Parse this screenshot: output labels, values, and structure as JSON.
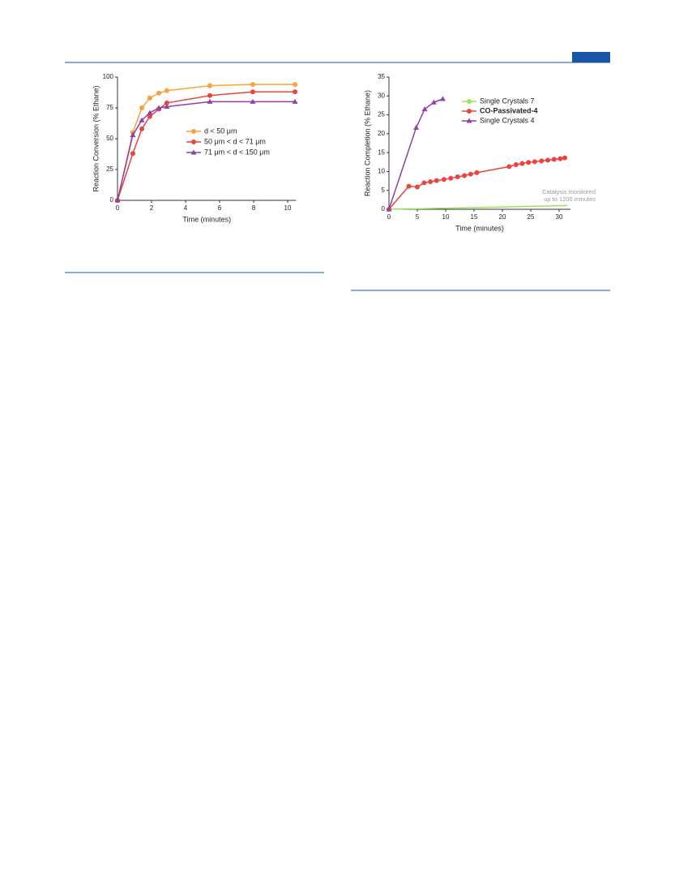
{
  "chart_data": [
    {
      "type": "line",
      "xlabel": "Time (minutes)",
      "ylabel": "Reaction Conversion (% Ethane)",
      "xlim": [
        0,
        10.5
      ],
      "xticks": [
        0,
        2,
        4,
        6,
        8,
        10
      ],
      "ylim": [
        0,
        100
      ],
      "yticks": [
        0,
        25,
        50,
        75,
        100
      ],
      "series": [
        {
          "name": "d < 50 μm",
          "color": "#f7a23b",
          "marker": "circle",
          "x": [
            0,
            0.9,
            1.43,
            1.9,
            2.43,
            2.9,
            5.43,
            7.95,
            10.43
          ],
          "values": [
            0,
            55,
            75,
            83,
            87,
            89,
            93,
            94,
            94
          ]
        },
        {
          "name": "50 μm < d < 71 μm",
          "color": "#e8453c",
          "marker": "circle",
          "x": [
            0,
            0.9,
            1.43,
            1.9,
            2.43,
            2.9,
            5.43,
            7.95,
            10.43
          ],
          "values": [
            0,
            38,
            58,
            68,
            74,
            79,
            85,
            88,
            88
          ]
        },
        {
          "name": "71 μm < d < 150 μm",
          "color": "#8e3fa8",
          "marker": "triangle",
          "x": [
            0,
            0.9,
            1.43,
            1.9,
            2.43,
            2.9,
            5.43,
            7.95,
            10.43
          ],
          "values": [
            0,
            53,
            65,
            71,
            75,
            76,
            80,
            80,
            80
          ]
        }
      ]
    },
    {
      "type": "line",
      "xlabel": "Time (minutes)",
      "ylabel": "Reaction Completion (% Ethane)",
      "xlim": [
        0,
        32
      ],
      "xticks": [
        0,
        5,
        10,
        15,
        20,
        25,
        30
      ],
      "ylim": [
        0,
        35
      ],
      "yticks": [
        0,
        5,
        10,
        15,
        20,
        25,
        30,
        35
      ],
      "annotation": [
        "Catalysis monitored",
        "up to 1200 minutes"
      ],
      "series": [
        {
          "name": "Single Crystals 7",
          "color": "#9be35a",
          "marker": "none",
          "x": [
            0,
            10,
            20,
            31.5
          ],
          "values": [
            0,
            0.3,
            0.6,
            1
          ]
        },
        {
          "name": "CO-Passivated-4",
          "color": "#e8453c",
          "marker": "circle",
          "x": [
            0,
            3.5,
            5,
            6.2,
            7.3,
            8.4,
            9.7,
            10.9,
            12.1,
            13.3,
            14.4,
            15.5,
            21.2,
            22.4,
            23.5,
            24.6,
            25.7,
            26.9,
            28,
            29.1,
            30.2,
            31
          ],
          "values": [
            0,
            6.1,
            5.9,
            7,
            7.3,
            7.6,
            7.9,
            8.2,
            8.6,
            8.9,
            9.3,
            9.7,
            11.3,
            11.8,
            12.1,
            12.4,
            12.6,
            12.8,
            13,
            13.2,
            13.4,
            13.6
          ]
        },
        {
          "name": "Single Crystals 4",
          "color": "#8e3fa8",
          "marker": "triangle",
          "x": [
            0,
            4.8,
            6.3,
            7.9,
            9.5
          ],
          "values": [
            0,
            21.6,
            26.5,
            28.3,
            29.2
          ]
        }
      ]
    }
  ]
}
